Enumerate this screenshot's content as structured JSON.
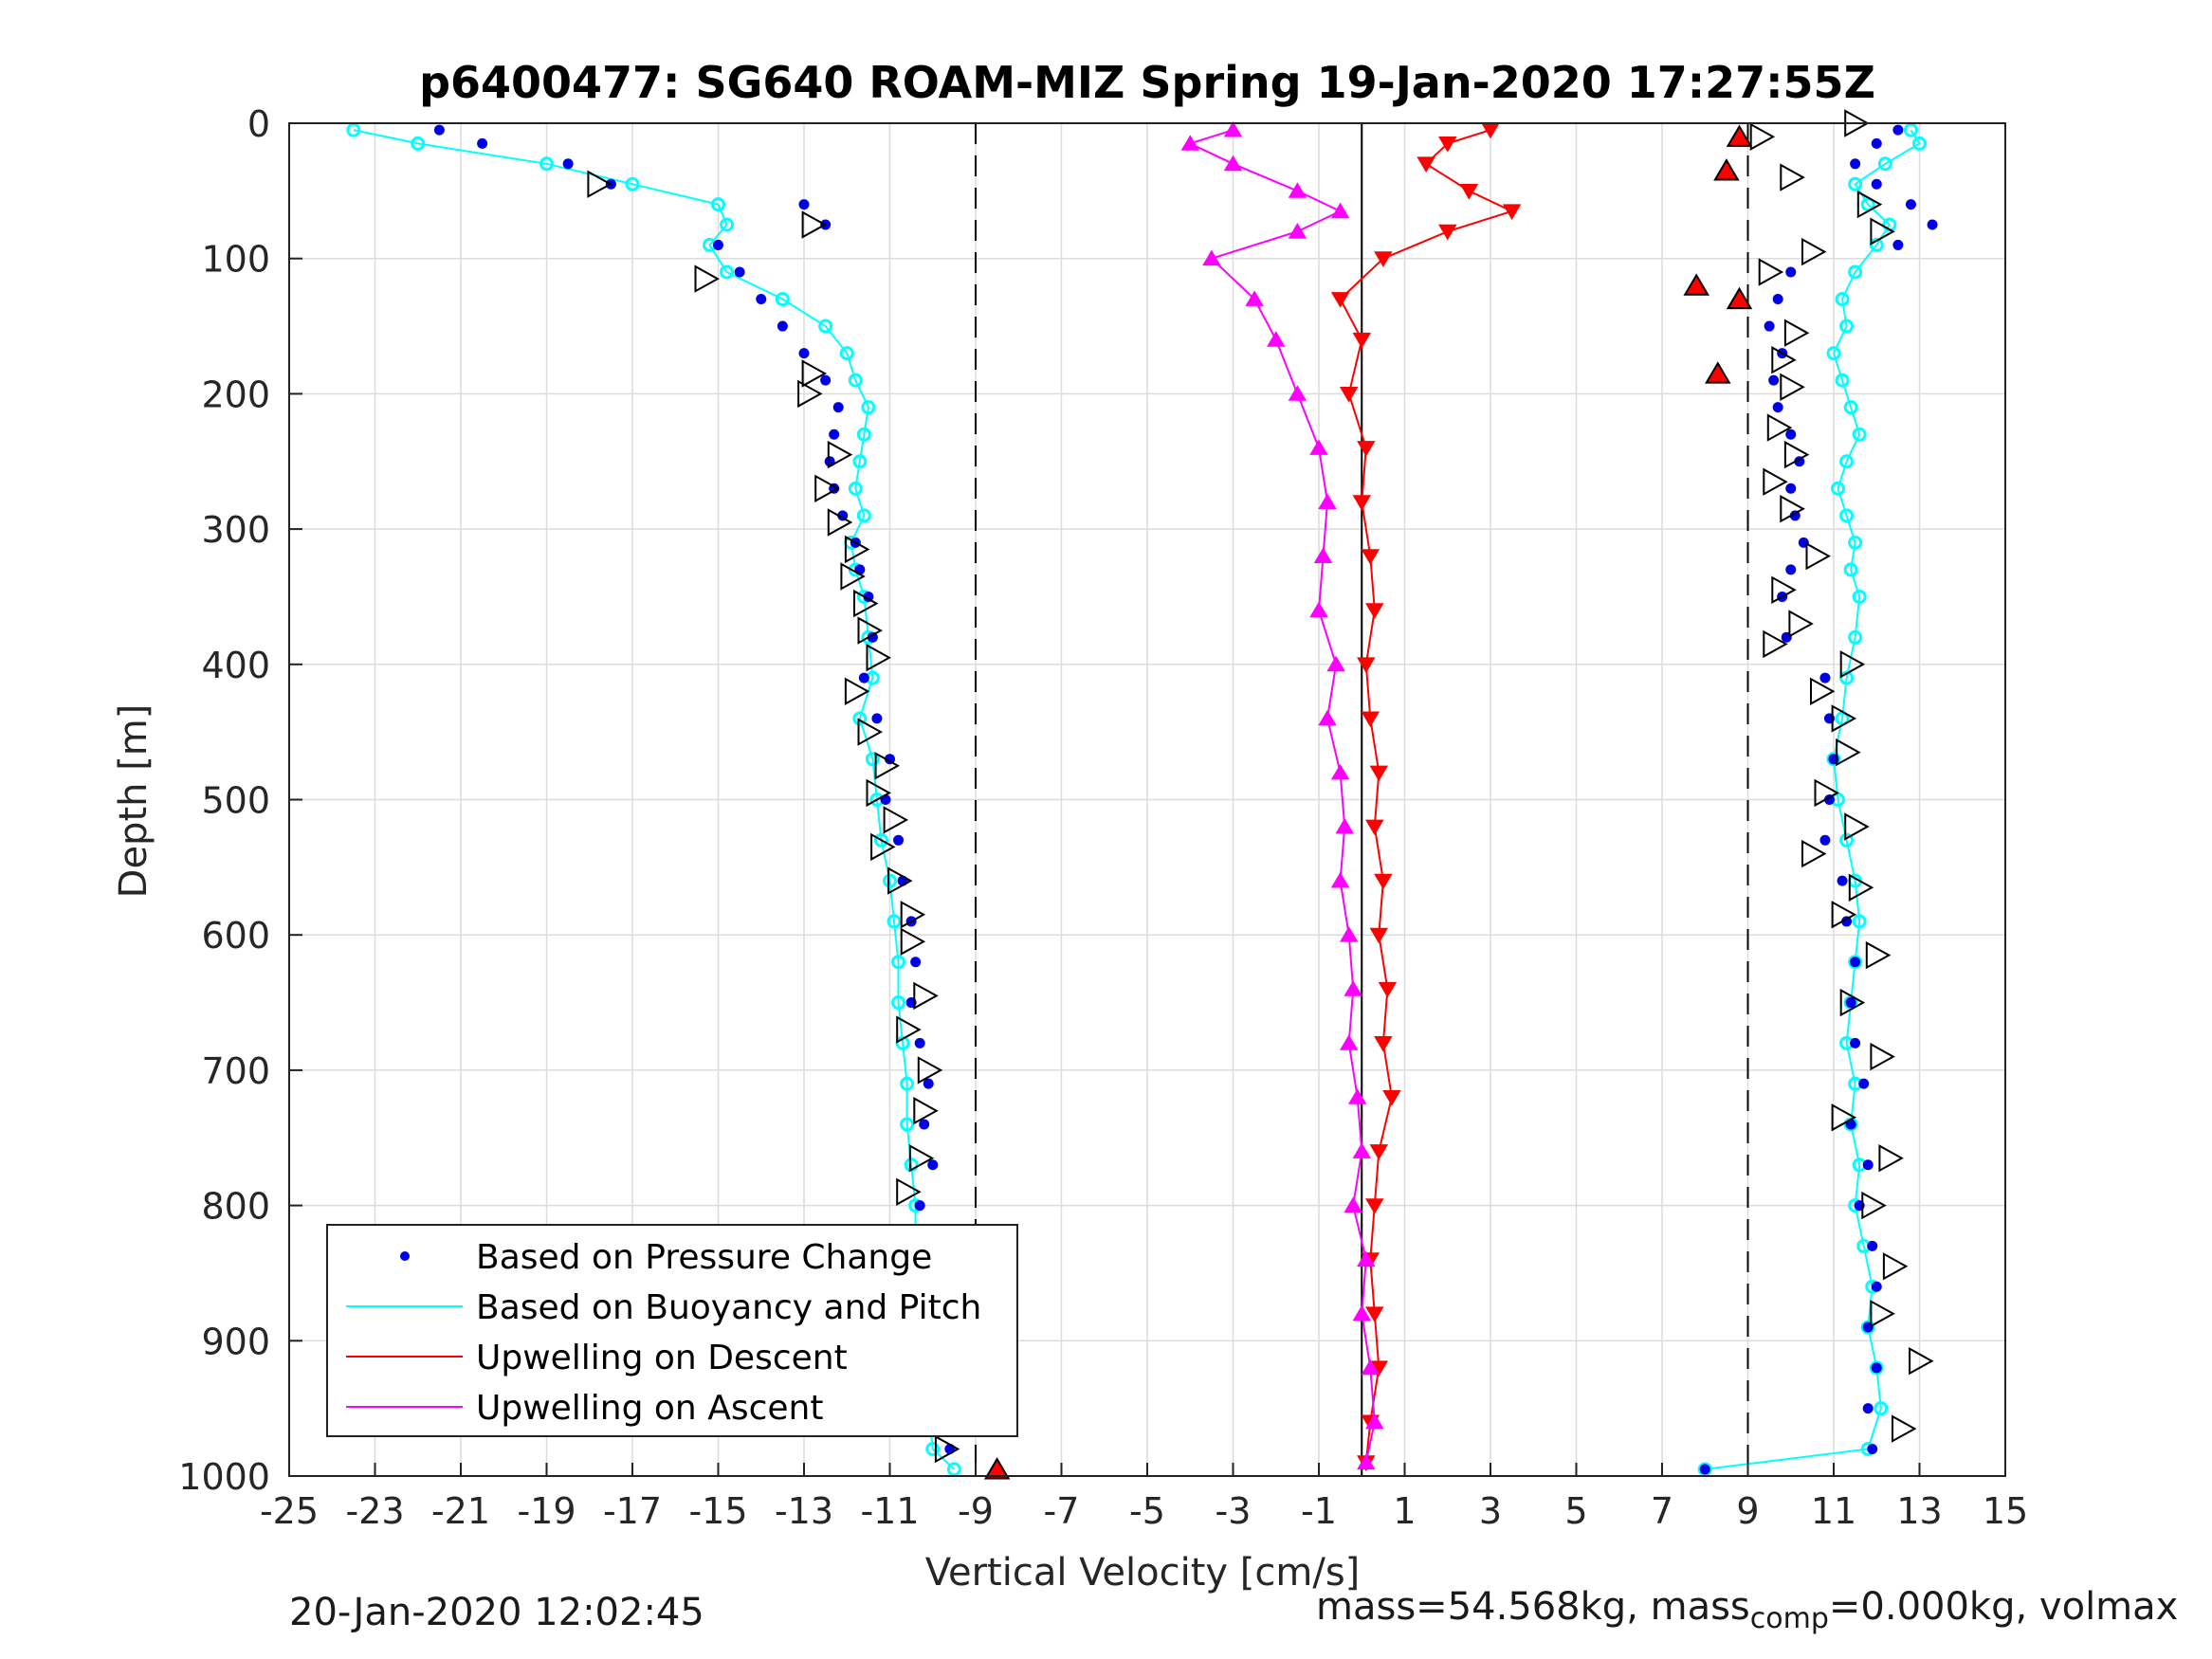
{
  "chart_data": {
    "type": "scatter",
    "title": "p6400477: SG640 ROAM-MIZ Spring 19-Jan-2020 17:27:55Z",
    "xlabel": "Vertical Velocity [cm/s]",
    "ylabel": "Depth [m]",
    "xlim": [
      -25,
      15
    ],
    "ylim": [
      1000,
      0
    ],
    "y_reversed": true,
    "x_ticks": [
      -25,
      -23,
      -21,
      -19,
      -17,
      -15,
      -13,
      -11,
      -9,
      -7,
      -5,
      -3,
      -1,
      1,
      3,
      5,
      7,
      9,
      11,
      13,
      15
    ],
    "y_ticks": [
      0,
      100,
      200,
      300,
      400,
      500,
      600,
      700,
      800,
      900,
      1000
    ],
    "grid": true,
    "legend_position": "bottom-left",
    "reference_lines": [
      {
        "x": -9,
        "style": "dashed"
      },
      {
        "x": 0,
        "style": "solid"
      },
      {
        "x": 9,
        "style": "dashed"
      }
    ],
    "series": [
      {
        "name": "Based on Pressure Change",
        "color": "#0000e6",
        "marker": "dot",
        "descent": {
          "depth": [
            5,
            15,
            30,
            45,
            60,
            75,
            90,
            110,
            130,
            150,
            170,
            190,
            210,
            230,
            250,
            270,
            290,
            310,
            330,
            350,
            380,
            410,
            440,
            470,
            500,
            530,
            560,
            590,
            620,
            650,
            680,
            710,
            740,
            770,
            800,
            830,
            860,
            890,
            920,
            950,
            980,
            995
          ],
          "velocity": [
            -21.5,
            -20.5,
            -18.5,
            -17.5,
            -13,
            -12.5,
            -15,
            -14.5,
            -14,
            -13.5,
            -13,
            -12.5,
            -12.2,
            -12.3,
            -12.4,
            -12.3,
            -12.1,
            -11.8,
            -11.7,
            -11.5,
            -11.4,
            -11.6,
            -11.3,
            -11.0,
            -11.1,
            -10.8,
            -10.7,
            -10.5,
            -10.4,
            -10.5,
            -10.3,
            -10.1,
            -10.2,
            -10.0,
            -10.3,
            -10.1,
            -10.0,
            -9.8,
            -9.9,
            -9.7,
            -9.6,
            -8.5
          ]
        },
        "ascent": {
          "depth": [
            5,
            15,
            30,
            45,
            60,
            75,
            90,
            110,
            130,
            150,
            170,
            190,
            210,
            230,
            250,
            270,
            290,
            310,
            330,
            350,
            380,
            410,
            440,
            470,
            500,
            530,
            560,
            590,
            620,
            650,
            680,
            710,
            740,
            770,
            800,
            830,
            860,
            890,
            920,
            950,
            980,
            995
          ],
          "velocity": [
            12.5,
            12.0,
            11.5,
            12.0,
            12.8,
            13.3,
            12.5,
            10.0,
            9.7,
            9.5,
            9.8,
            9.6,
            9.7,
            10.0,
            10.2,
            10.0,
            10.1,
            10.3,
            10.0,
            9.8,
            9.9,
            10.8,
            10.9,
            11.0,
            10.9,
            10.8,
            11.2,
            11.3,
            11.5,
            11.4,
            11.5,
            11.7,
            11.4,
            11.8,
            11.6,
            11.9,
            12.0,
            11.8,
            12.0,
            11.8,
            11.9,
            8.0
          ]
        }
      },
      {
        "name": "Based on Buoyancy and Pitch",
        "color": "#00ffff",
        "marker": "circle-line",
        "descent": {
          "depth": [
            5,
            15,
            30,
            45,
            60,
            75,
            90,
            110,
            130,
            150,
            170,
            190,
            210,
            230,
            250,
            270,
            290,
            310,
            330,
            350,
            380,
            410,
            440,
            470,
            500,
            530,
            560,
            590,
            620,
            650,
            680,
            710,
            740,
            770,
            800,
            830,
            860,
            890,
            920,
            950,
            980,
            995
          ],
          "velocity": [
            -23.5,
            -22,
            -19,
            -17,
            -15,
            -14.8,
            -15.2,
            -14.8,
            -13.5,
            -12.5,
            -12.0,
            -11.8,
            -11.5,
            -11.6,
            -11.7,
            -11.8,
            -11.6,
            -11.9,
            -11.8,
            -11.6,
            -11.5,
            -11.4,
            -11.7,
            -11.4,
            -11.3,
            -11.2,
            -11.0,
            -10.9,
            -10.8,
            -10.8,
            -10.7,
            -10.6,
            -10.6,
            -10.5,
            -10.4,
            -10.4,
            -10.3,
            -10.2,
            -10.2,
            -10.1,
            -10.0,
            -9.5
          ]
        },
        "ascent": {
          "depth": [
            5,
            15,
            30,
            45,
            60,
            75,
            90,
            110,
            130,
            150,
            170,
            190,
            210,
            230,
            250,
            270,
            290,
            310,
            330,
            350,
            380,
            410,
            440,
            470,
            500,
            530,
            560,
            590,
            620,
            650,
            680,
            710,
            740,
            770,
            800,
            830,
            860,
            890,
            920,
            950,
            980,
            995
          ],
          "velocity": [
            12.8,
            13.0,
            12.2,
            11.5,
            11.8,
            12.3,
            12.0,
            11.5,
            11.2,
            11.3,
            11.0,
            11.2,
            11.4,
            11.6,
            11.3,
            11.1,
            11.3,
            11.5,
            11.4,
            11.6,
            11.5,
            11.3,
            11.2,
            11.0,
            11.1,
            11.3,
            11.5,
            11.6,
            11.5,
            11.4,
            11.3,
            11.5,
            11.4,
            11.6,
            11.5,
            11.7,
            11.9,
            11.8,
            12.0,
            12.1,
            11.8,
            8.0
          ]
        }
      },
      {
        "name": "Upwelling on Descent",
        "color": "#ff0000",
        "marker": "triangle-down",
        "depth": [
          5,
          15,
          30,
          50,
          65,
          80,
          100,
          130,
          160,
          200,
          240,
          280,
          320,
          360,
          400,
          440,
          480,
          520,
          560,
          600,
          640,
          680,
          720,
          760,
          800,
          840,
          880,
          920,
          960,
          990
        ],
        "velocity": [
          3.0,
          2.0,
          1.5,
          2.5,
          3.5,
          2.0,
          0.5,
          -0.5,
          0.0,
          -0.3,
          0.1,
          0.0,
          0.2,
          0.3,
          0.1,
          0.2,
          0.4,
          0.3,
          0.5,
          0.4,
          0.6,
          0.5,
          0.7,
          0.4,
          0.3,
          0.2,
          0.3,
          0.4,
          0.2,
          0.1
        ]
      },
      {
        "name": "Upwelling on Ascent",
        "color": "#ff00ff",
        "marker": "triangle-up",
        "depth": [
          5,
          15,
          30,
          50,
          65,
          80,
          100,
          130,
          160,
          200,
          240,
          280,
          320,
          360,
          400,
          440,
          480,
          520,
          560,
          600,
          640,
          680,
          720,
          760,
          800,
          840,
          880,
          920,
          960,
          990
        ],
        "velocity": [
          -3.0,
          -4.0,
          -3.0,
          -1.5,
          -0.5,
          -1.5,
          -3.5,
          -2.5,
          -2.0,
          -1.5,
          -1.0,
          -0.8,
          -0.9,
          -1.0,
          -0.6,
          -0.8,
          -0.5,
          -0.4,
          -0.5,
          -0.3,
          -0.2,
          -0.3,
          -0.1,
          0.0,
          -0.2,
          0.1,
          0.0,
          0.2,
          0.3,
          0.1
        ]
      }
    ],
    "markers_open_triangles_descent": {
      "depth": [
        45,
        75,
        115,
        185,
        200,
        245,
        270,
        295,
        315,
        335,
        355,
        375,
        395,
        420,
        450,
        475,
        495,
        515,
        535,
        560,
        585,
        605,
        645,
        670,
        700,
        730,
        765,
        790,
        830,
        855,
        890,
        920,
        950,
        980
      ],
      "velocity": [
        -17.8,
        -12.8,
        -15.3,
        -12.8,
        -12.9,
        -12.2,
        -12.5,
        -12.2,
        -11.8,
        -11.9,
        -11.6,
        -11.5,
        -11.3,
        -11.8,
        -11.5,
        -11.1,
        -11.3,
        -10.9,
        -11.2,
        -10.8,
        -10.5,
        -10.5,
        -10.2,
        -10.6,
        -10.1,
        -10.2,
        -10.3,
        -10.6,
        -10.4,
        -10.3,
        -10.1,
        -9.8,
        -10.3,
        -9.7
      ]
    },
    "markers_open_triangles_ascent": {
      "depth": [
        0,
        10,
        40,
        60,
        80,
        95,
        110,
        155,
        175,
        195,
        225,
        245,
        265,
        285,
        320,
        345,
        370,
        385,
        400,
        420,
        440,
        465,
        495,
        520,
        540,
        565,
        585,
        615,
        650,
        690,
        735,
        765,
        800,
        845,
        880,
        915,
        965
      ],
      "velocity": [
        11.5,
        9.3,
        10.0,
        11.8,
        12.1,
        10.5,
        9.5,
        10.1,
        9.8,
        10.0,
        9.7,
        10.1,
        9.6,
        10.0,
        10.6,
        9.8,
        10.2,
        9.6,
        11.4,
        10.7,
        11.2,
        11.3,
        10.8,
        11.5,
        10.5,
        11.6,
        11.2,
        12.0,
        11.4,
        12.1,
        11.2,
        12.3,
        11.9,
        12.4,
        12.1,
        13.0,
        12.6
      ]
    },
    "filled_red_markers": {
      "depth": [
        10,
        35,
        120,
        130,
        185,
        995
      ],
      "velocity": [
        8.8,
        8.5,
        7.8,
        8.8,
        8.3,
        -8.5
      ]
    },
    "footer_left": "20-Jan-2020 12:02:45",
    "footer_right": "mass=54.568kg, mass",
    "footer_right_sub": "comp",
    "footer_right_tail": "=0.000kg, volmax"
  }
}
